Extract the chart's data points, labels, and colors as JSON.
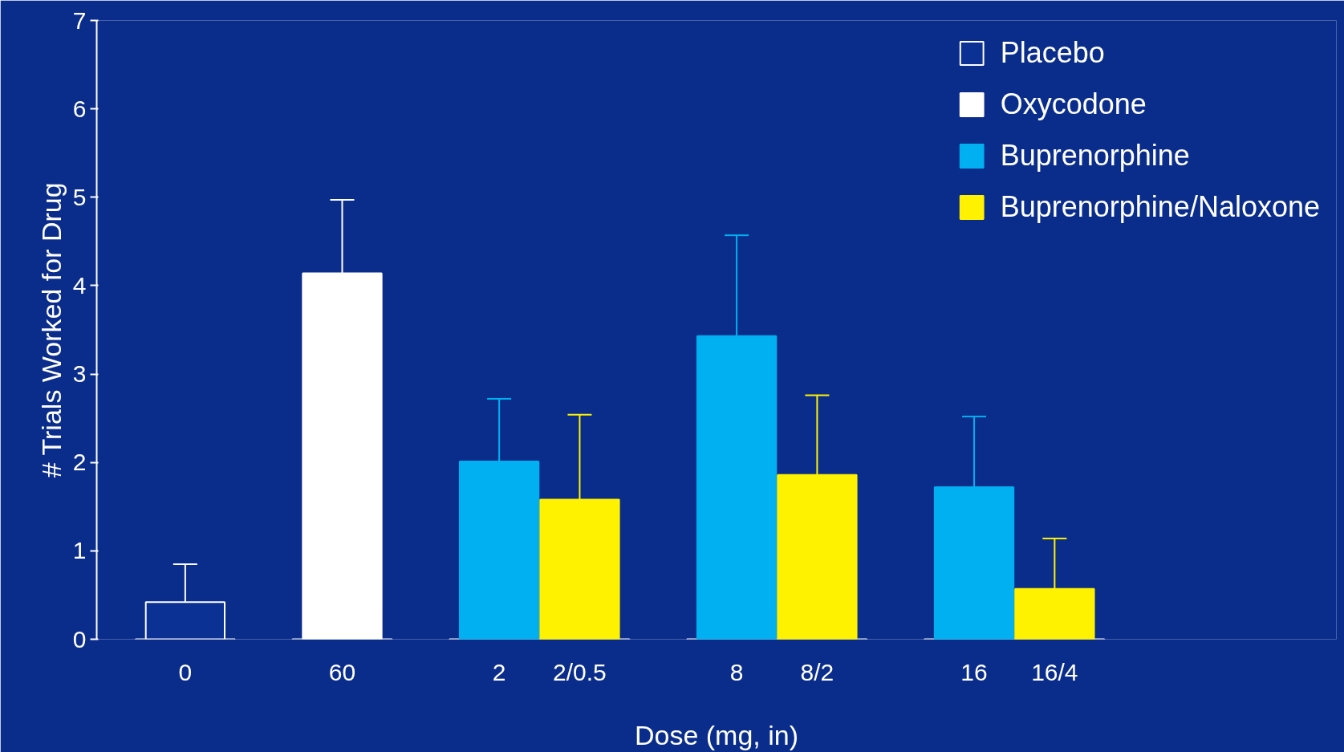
{
  "chart_data": {
    "type": "bar",
    "xlabel": "Dose (mg, in)",
    "ylabel": "# Trials Worked for Drug",
    "categories": [
      "0",
      "60",
      "2",
      "2/0.5",
      "8",
      "8/2",
      "16",
      "16/4"
    ],
    "series": [
      {
        "name": "Placebo",
        "color": "#0b3194",
        "values": [
          0.42,
          null,
          null,
          null,
          null,
          null,
          null,
          null
        ],
        "errors": [
          [
            0.42,
            0.85
          ],
          null,
          null,
          null,
          null,
          null,
          null,
          null
        ]
      },
      {
        "name": "Oxycodone",
        "color": "#ffffff",
        "values": [
          null,
          4.14,
          null,
          null,
          null,
          null,
          null,
          null
        ],
        "errors": [
          null,
          [
            4.14,
            4.97
          ],
          null,
          null,
          null,
          null,
          null,
          null
        ]
      },
      {
        "name": "Buprenorphine",
        "color": "#00b0f0",
        "values": [
          null,
          null,
          2.01,
          null,
          3.43,
          null,
          1.72,
          null
        ],
        "errors": [
          null,
          null,
          [
            2.01,
            2.72
          ],
          null,
          [
            3.43,
            4.57
          ],
          null,
          [
            1.72,
            2.52
          ],
          null
        ]
      },
      {
        "name": "Buprenorphine/Naloxone",
        "color": "#fff200",
        "values": [
          null,
          null,
          null,
          1.58,
          null,
          1.86,
          null,
          0.57
        ],
        "errors": [
          null,
          null,
          null,
          [
            1.58,
            2.54
          ],
          null,
          [
            1.86,
            2.76
          ],
          null,
          [
            0.57,
            1.14
          ]
        ]
      }
    ],
    "ylim": [
      0,
      7
    ],
    "yticks": [
      0,
      1,
      2,
      3,
      4,
      5,
      6,
      7
    ],
    "grid": false,
    "legend": "top right"
  }
}
